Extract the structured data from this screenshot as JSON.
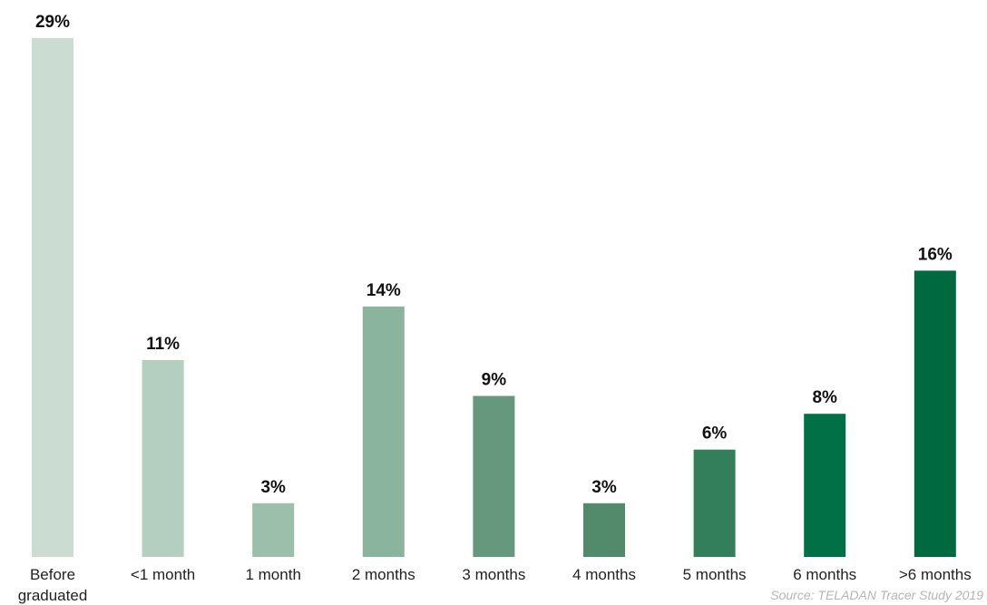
{
  "chart_data": {
    "type": "bar",
    "categories": [
      "Before graduated",
      "<1 month",
      "1 month",
      "2 months",
      "3 months",
      "4 months",
      "5 months",
      "6 months",
      ">6 months"
    ],
    "values": [
      29,
      11,
      3,
      14,
      9,
      3,
      6,
      8,
      16
    ],
    "value_labels": [
      "29%",
      "11%",
      "3%",
      "14%",
      "9%",
      "3%",
      "6%",
      "8%",
      "16%"
    ],
    "colors": [
      "#cbddd3",
      "#b4cfbf",
      "#9bbfab",
      "#8bb49f",
      "#66987d",
      "#528a6c",
      "#337f5c",
      "#017047",
      "#016940"
    ],
    "ylim": [
      0,
      29
    ],
    "grid": false,
    "source": "Source: TELADAN Tracer Study 2019"
  }
}
